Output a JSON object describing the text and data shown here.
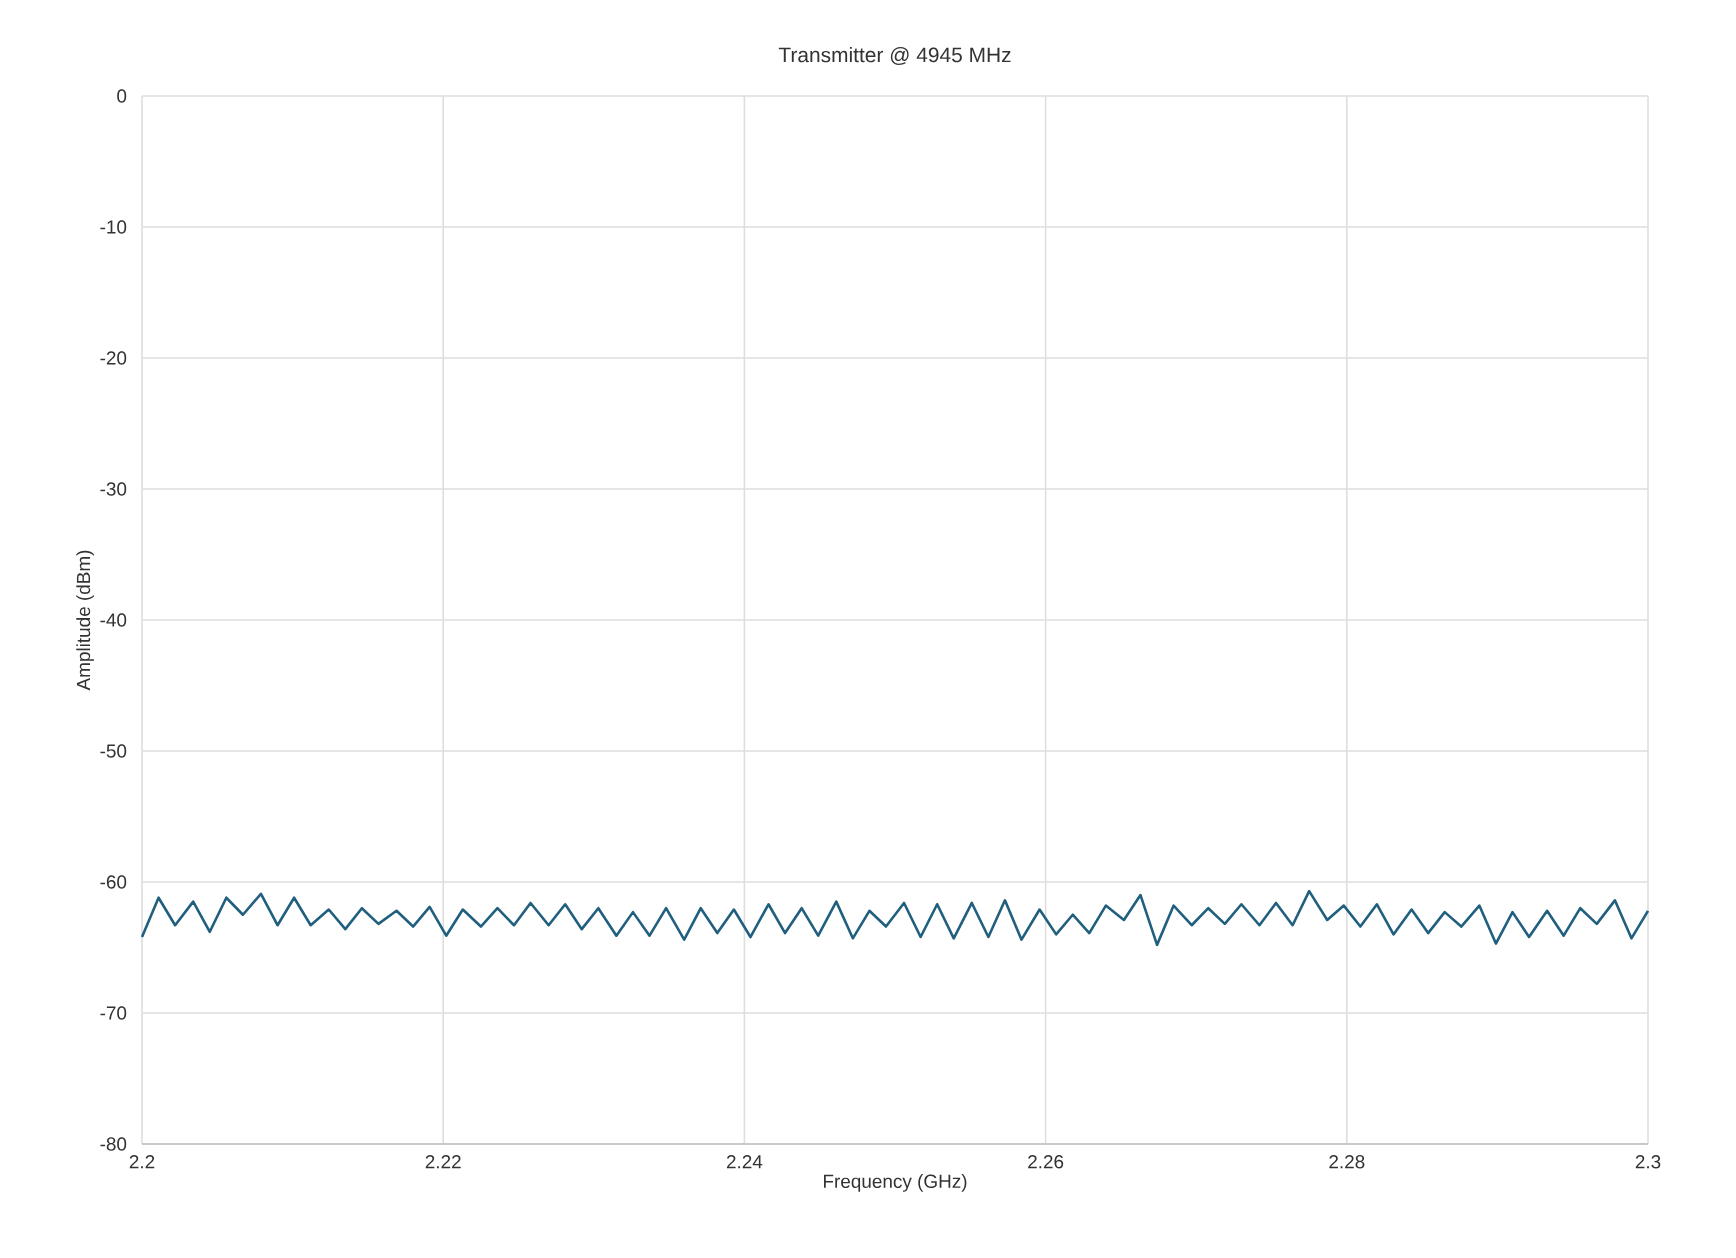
{
  "chart_data": {
    "type": "line",
    "title": "Transmitter @ 4945 MHz",
    "xlabel": "Frequency (GHz)",
    "ylabel": "Amplitude (dBm)",
    "xlim": [
      2.2,
      2.3
    ],
    "xticks": [
      2.2,
      2.22,
      2.24,
      2.26,
      2.28,
      2.3
    ],
    "ylim": [
      -80,
      0
    ],
    "yticks": [
      -80,
      -70,
      -60,
      -50,
      -40,
      -30,
      -20,
      -10,
      0
    ],
    "grid": true,
    "marker": "none",
    "line_style": "solid",
    "x": [
      2.2,
      2.2011,
      2.2022,
      2.2034,
      2.2045,
      2.2056,
      2.2067,
      2.2079,
      2.209,
      2.2101,
      2.2112,
      2.2124,
      2.2135,
      2.2146,
      2.2157,
      2.2169,
      2.218,
      2.2191,
      2.2202,
      2.2213,
      2.2225,
      2.2236,
      2.2247,
      2.2258,
      2.227,
      2.2281,
      2.2292,
      2.2303,
      2.2315,
      2.2326,
      2.2337,
      2.2348,
      2.236,
      2.2371,
      2.2382,
      2.2393,
      2.2404,
      2.2416,
      2.2427,
      2.2438,
      2.2449,
      2.2461,
      2.2472,
      2.2483,
      2.2494,
      2.2506,
      2.2517,
      2.2528,
      2.2539,
      2.2551,
      2.2562,
      2.2573,
      2.2584,
      2.2596,
      2.2607,
      2.2618,
      2.2629,
      2.264,
      2.2652,
      2.2663,
      2.2674,
      2.2685,
      2.2697,
      2.2708,
      2.2719,
      2.273,
      2.2742,
      2.2753,
      2.2764,
      2.2775,
      2.2787,
      2.2798,
      2.2809,
      2.282,
      2.2831,
      2.2843,
      2.2854,
      2.2865,
      2.2876,
      2.2888,
      2.2899,
      2.291,
      2.2921,
      2.2933,
      2.2944,
      2.2955,
      2.2966,
      2.2978,
      2.2989,
      2.3
    ],
    "series": [
      {
        "color": "#215f7f",
        "values": [
          -64.2,
          -61.2,
          -63.3,
          -61.5,
          -63.8,
          -61.2,
          -62.5,
          -60.9,
          -63.3,
          -61.2,
          -63.3,
          -62.1,
          -63.6,
          -62.0,
          -63.2,
          -62.2,
          -63.4,
          -61.9,
          -64.1,
          -62.1,
          -63.4,
          -62.0,
          -63.3,
          -61.6,
          -63.3,
          -61.7,
          -63.6,
          -62.0,
          -64.1,
          -62.3,
          -64.1,
          -62.0,
          -64.4,
          -62.0,
          -63.9,
          -62.1,
          -64.2,
          -61.7,
          -63.9,
          -62.0,
          -64.1,
          -61.5,
          -64.3,
          -62.2,
          -63.4,
          -61.6,
          -64.2,
          -61.7,
          -64.3,
          -61.6,
          -64.2,
          -61.4,
          -64.4,
          -62.1,
          -64.0,
          -62.5,
          -63.9,
          -61.8,
          -62.9,
          -61.0,
          -64.8,
          -61.8,
          -63.3,
          -62.0,
          -63.2,
          -61.7,
          -63.3,
          -61.6,
          -63.3,
          -60.7,
          -62.9,
          -61.8,
          -63.4,
          -61.7,
          -64.0,
          -62.1,
          -63.9,
          -62.3,
          -63.4,
          -61.8,
          -64.7,
          -62.3,
          -64.2,
          -62.2,
          -64.1,
          -62.0,
          -63.2,
          -61.4,
          -64.3,
          -62.2
        ]
      }
    ]
  }
}
